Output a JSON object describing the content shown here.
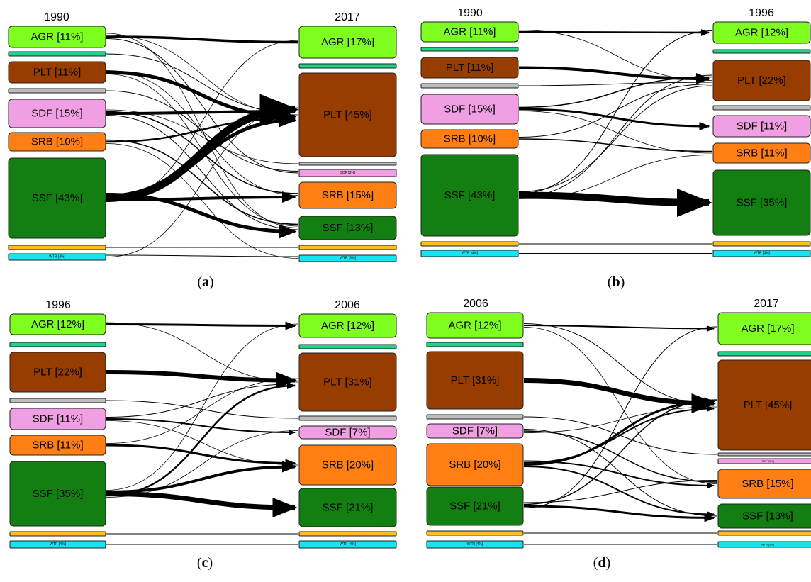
{
  "colors": {
    "AGR": "#7fff20",
    "MIN": "#1ed488",
    "PLT": "#973d00",
    "GRY": "#bdbdbd",
    "SDF": "#f0a0e2",
    "SRB": "#ff7f14",
    "SSF": "#137f13",
    "YLW": "#ffbe1e",
    "WTR": "#16e4f2",
    "flow": "#000000"
  },
  "panels": [
    {
      "caption": "a",
      "left_year": "1990",
      "right_year": "2017",
      "left_nodes": [
        {
          "cls": "AGR",
          "label": "AGR [11%]"
        },
        {
          "cls": "MIN",
          "label": ""
        },
        {
          "cls": "PLT",
          "label": "PLT [11%]"
        },
        {
          "cls": "GRY",
          "label": ""
        },
        {
          "cls": "SDF",
          "label": "SDF [15%]"
        },
        {
          "cls": "SRB",
          "label": "SRB [10%]"
        },
        {
          "cls": "SSF",
          "label": "SSF [43%]"
        },
        {
          "cls": "YLW",
          "label": ""
        },
        {
          "cls": "WTR",
          "label": "WTR [4%]"
        }
      ],
      "right_nodes": [
        {
          "cls": "AGR",
          "label": "AGR [17%]"
        },
        {
          "cls": "MIN",
          "label": ""
        },
        {
          "cls": "PLT",
          "label": "PLT [45%]"
        },
        {
          "cls": "GRY",
          "label": ""
        },
        {
          "cls": "SDF",
          "label": "SDF [3%]"
        },
        {
          "cls": "SRB",
          "label": "SRB [15%]"
        },
        {
          "cls": "SSF",
          "label": "SSF [13%]"
        },
        {
          "cls": "YLW",
          "label": ""
        },
        {
          "cls": "WTR",
          "label": "WTR [3%]"
        }
      ]
    },
    {
      "caption": "b",
      "left_year": "1990",
      "right_year": "1996",
      "left_nodes": [
        {
          "cls": "AGR",
          "label": "AGR [11%]"
        },
        {
          "cls": "MIN",
          "label": ""
        },
        {
          "cls": "PLT",
          "label": "PLT [11%]"
        },
        {
          "cls": "GRY",
          "label": ""
        },
        {
          "cls": "SDF",
          "label": "SDF [15%]"
        },
        {
          "cls": "SRB",
          "label": "SRB [10%]"
        },
        {
          "cls": "SSF",
          "label": "SSF [43%]"
        },
        {
          "cls": "YLW",
          "label": ""
        },
        {
          "cls": "WTR",
          "label": "WTR [4%]"
        }
      ],
      "right_nodes": [
        {
          "cls": "AGR",
          "label": "AGR [12%]"
        },
        {
          "cls": "MIN",
          "label": ""
        },
        {
          "cls": "PLT",
          "label": "PLT [22%]"
        },
        {
          "cls": "GRY",
          "label": ""
        },
        {
          "cls": "SDF",
          "label": "SDF [11%]"
        },
        {
          "cls": "SRB",
          "label": "SRB [11%]"
        },
        {
          "cls": "SSF",
          "label": "SSF [35%]"
        },
        {
          "cls": "YLW",
          "label": ""
        },
        {
          "cls": "WTR",
          "label": "WTR [4%]"
        }
      ]
    },
    {
      "caption": "c",
      "left_year": "1996",
      "right_year": "2006",
      "left_nodes": [
        {
          "cls": "AGR",
          "label": "AGR [12%]"
        },
        {
          "cls": "MIN",
          "label": ""
        },
        {
          "cls": "PLT",
          "label": "PLT [22%]"
        },
        {
          "cls": "GRY",
          "label": ""
        },
        {
          "cls": "SDF",
          "label": "SDF [11%]"
        },
        {
          "cls": "SRB",
          "label": "SRB [11%]"
        },
        {
          "cls": "SSF",
          "label": "SSF [35%]"
        },
        {
          "cls": "YLW",
          "label": ""
        },
        {
          "cls": "WTR",
          "label": "WTR [4%]"
        }
      ],
      "right_nodes": [
        {
          "cls": "AGR",
          "label": "AGR [12%]"
        },
        {
          "cls": "MIN",
          "label": ""
        },
        {
          "cls": "PLT",
          "label": "PLT [31%]"
        },
        {
          "cls": "GRY",
          "label": ""
        },
        {
          "cls": "SDF",
          "label": "SDF [7%]"
        },
        {
          "cls": "SRB",
          "label": "SRB [20%]"
        },
        {
          "cls": "SSF",
          "label": "SSF [21%]"
        },
        {
          "cls": "YLW",
          "label": ""
        },
        {
          "cls": "WTR",
          "label": "WTR [4%]"
        }
      ]
    },
    {
      "caption": "d",
      "left_year": "2006",
      "right_year": "2017",
      "left_nodes": [
        {
          "cls": "AGR",
          "label": "AGR [12%]"
        },
        {
          "cls": "MIN",
          "label": ""
        },
        {
          "cls": "PLT",
          "label": "PLT [31%]"
        },
        {
          "cls": "GRY",
          "label": ""
        },
        {
          "cls": "SDF",
          "label": "SDF [7%]"
        },
        {
          "cls": "SRB",
          "label": "SRB [20%]"
        },
        {
          "cls": "SSF",
          "label": "SSF [21%]"
        },
        {
          "cls": "YLW",
          "label": ""
        },
        {
          "cls": "WTR",
          "label": "WTR [4%]"
        }
      ],
      "right_nodes": [
        {
          "cls": "AGR",
          "label": "AGR [17%]"
        },
        {
          "cls": "MIN",
          "label": ""
        },
        {
          "cls": "PLT",
          "label": "PLT [45%]"
        },
        {
          "cls": "GRY",
          "label": ""
        },
        {
          "cls": "SDF",
          "label": "SDF [3%]"
        },
        {
          "cls": "SRB",
          "label": "SRB [15%]"
        },
        {
          "cls": "SSF",
          "label": "SSF [13%]"
        },
        {
          "cls": "YLW",
          "label": ""
        },
        {
          "cls": "WTR",
          "label": "WTR [3%]"
        }
      ]
    }
  ]
}
